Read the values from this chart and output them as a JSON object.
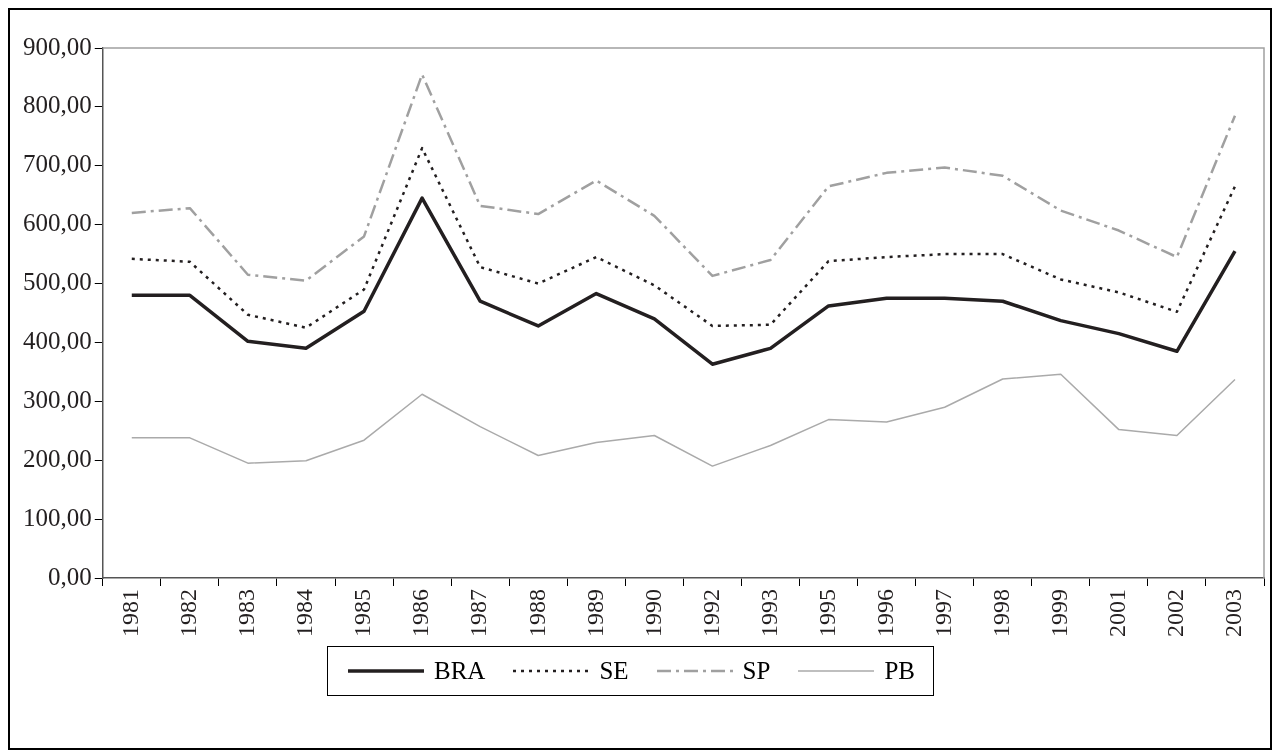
{
  "chart_data": {
    "type": "line",
    "categories": [
      "1981",
      "1982",
      "1983",
      "1984",
      "1985",
      "1986",
      "1987",
      "1988",
      "1989",
      "1990",
      "1992",
      "1993",
      "1995",
      "1996",
      "1997",
      "1998",
      "1999",
      "2001",
      "2002",
      "2003"
    ],
    "series": [
      {
        "name": "BRA",
        "color": "#231f20",
        "line_style": "solid",
        "values": [
          480,
          480,
          402,
          390,
          453,
          645,
          470,
          428,
          483,
          440,
          363,
          390,
          462,
          475,
          475,
          470,
          437,
          415,
          385,
          555
        ]
      },
      {
        "name": "SE",
        "color": "#231f20",
        "line_style": "dotted",
        "values": [
          542,
          537,
          447,
          425,
          490,
          730,
          528,
          500,
          545,
          497,
          428,
          430,
          538,
          545,
          550,
          550,
          507,
          485,
          452,
          665
        ]
      },
      {
        "name": "SP",
        "color": "#a0a0a0",
        "line_style": "dashdot",
        "values": [
          620,
          628,
          515,
          505,
          580,
          855,
          632,
          618,
          675,
          615,
          513,
          540,
          665,
          688,
          697,
          683,
          624,
          590,
          545,
          785
        ]
      },
      {
        "name": "PB",
        "color": "#aaaaaa",
        "line_style": "solid",
        "values": [
          238,
          238,
          195,
          199,
          234,
          312,
          257,
          208,
          230,
          242,
          190,
          225,
          269,
          265,
          290,
          338,
          346,
          252,
          242,
          337
        ]
      }
    ],
    "ylim": [
      0,
      900
    ],
    "yticks": [
      {
        "value": 0,
        "label": "0,00"
      },
      {
        "value": 100,
        "label": "100,00"
      },
      {
        "value": 200,
        "label": "200,00"
      },
      {
        "value": 300,
        "label": "300,00"
      },
      {
        "value": 400,
        "label": "400,00"
      },
      {
        "value": 500,
        "label": "500,00"
      },
      {
        "value": 600,
        "label": "600,00"
      },
      {
        "value": 700,
        "label": "700,00"
      },
      {
        "value": 800,
        "label": "800,00"
      },
      {
        "value": 900,
        "label": "900,00"
      }
    ],
    "grid": false,
    "legend": "bottom",
    "marker": "none"
  }
}
